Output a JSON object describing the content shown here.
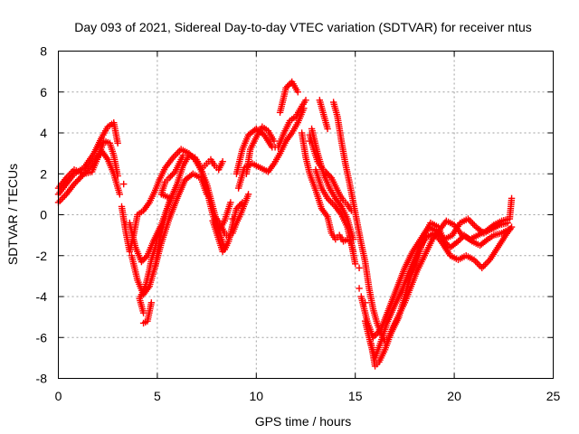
{
  "chart_data": {
    "type": "scatter",
    "title": "Day 093 of 2021, Sidereal Day-to-day VTEC variation (SDTVAR) for receiver ntus",
    "xlabel": "GPS time / hours",
    "ylabel": "SDTVAR / TECUs",
    "xlim": [
      0,
      25
    ],
    "ylim": [
      -8,
      8
    ],
    "x_ticks": [
      0,
      5,
      10,
      15,
      20,
      25
    ],
    "y_ticks": [
      -8,
      -6,
      -4,
      -2,
      0,
      2,
      4,
      6,
      8
    ],
    "x_tick_labels": [
      "0",
      "5",
      "10",
      "15",
      "20",
      "25"
    ],
    "y_tick_labels": [
      "-8",
      "-6",
      "-4",
      "-2",
      "0",
      "2",
      "4",
      "6",
      "8"
    ],
    "grid": true,
    "marker": "plus",
    "marker_color": "#ff0000",
    "series": [
      {
        "points": [
          [
            0.0,
            1.0
          ],
          [
            0.4,
            1.5
          ],
          [
            0.8,
            2.0
          ],
          [
            1.3,
            2.3
          ],
          [
            1.8,
            3.0
          ],
          [
            2.2,
            3.8
          ],
          [
            2.5,
            4.3
          ],
          [
            2.8,
            4.5
          ],
          [
            3.0,
            3.5
          ],
          [
            3.3,
            1.5
          ],
          [
            3.6,
            -0.4
          ],
          [
            3.9,
            -1.6
          ],
          [
            4.2,
            -2.3
          ],
          [
            4.5,
            -2.0
          ],
          [
            4.8,
            -1.3
          ],
          [
            5.2,
            -0.5
          ],
          [
            5.6,
            0.6
          ],
          [
            6.0,
            1.5
          ],
          [
            6.3,
            2.4
          ],
          [
            6.6,
            2.9
          ],
          [
            6.9,
            2.8
          ],
          [
            7.1,
            2.5
          ],
          [
            7.3,
            2.0
          ],
          [
            7.5,
            1.2
          ],
          [
            7.8,
            0.0
          ],
          [
            8.1,
            -0.8
          ],
          [
            8.4,
            -0.3
          ],
          [
            8.7,
            0.6
          ],
          [
            9.0,
            2.0
          ],
          [
            9.3,
            3.2
          ],
          [
            9.6,
            3.9
          ],
          [
            10.0,
            4.2
          ],
          [
            10.4,
            3.9
          ],
          [
            10.8,
            3.3
          ],
          [
            11.1,
            3.3
          ],
          [
            11.4,
            4.0
          ],
          [
            11.7,
            4.6
          ],
          [
            12.0,
            4.8
          ],
          [
            12.3,
            5.3
          ],
          [
            12.5,
            5.6
          ],
          [
            12.8,
            4.2
          ],
          [
            13.1,
            3.0
          ],
          [
            13.4,
            2.0
          ],
          [
            13.7,
            1.3
          ],
          [
            14.0,
            0.8
          ],
          [
            14.3,
            0.4
          ],
          [
            14.6,
            -0.2
          ],
          [
            14.9,
            -1.2
          ],
          [
            15.2,
            -2.6
          ],
          [
            15.5,
            -4.3
          ],
          [
            15.8,
            -6.3
          ],
          [
            16.0,
            -7.4
          ],
          [
            16.2,
            -7.2
          ],
          [
            16.5,
            -6.6
          ],
          [
            16.8,
            -5.8
          ],
          [
            17.2,
            -5.0
          ],
          [
            17.5,
            -4.0
          ],
          [
            17.8,
            -3.0
          ],
          [
            18.2,
            -2.0
          ],
          [
            18.5,
            -1.0
          ],
          [
            18.8,
            -0.4
          ],
          [
            19.2,
            -0.6
          ],
          [
            19.5,
            -1.3
          ],
          [
            19.8,
            -1.6
          ],
          [
            20.2,
            -1.3
          ],
          [
            20.5,
            -1.0
          ],
          [
            20.9,
            -1.3
          ],
          [
            21.3,
            -1.5
          ],
          [
            21.7,
            -1.2
          ],
          [
            22.0,
            -1.0
          ],
          [
            22.4,
            -0.9
          ],
          [
            22.8,
            -0.7
          ]
        ]
      },
      {
        "points": [
          [
            0.0,
            0.6
          ],
          [
            0.4,
            1.0
          ],
          [
            0.8,
            1.5
          ],
          [
            1.3,
            2.0
          ],
          [
            1.8,
            2.6
          ],
          [
            2.2,
            3.1
          ],
          [
            2.5,
            2.7
          ],
          [
            2.8,
            2.0
          ],
          [
            3.1,
            1.0
          ],
          [
            3.4,
            -0.5
          ],
          [
            3.7,
            -2.0
          ],
          [
            4.0,
            -3.2
          ],
          [
            4.3,
            -3.9
          ],
          [
            4.6,
            -3.5
          ],
          [
            4.9,
            -2.5
          ],
          [
            5.2,
            -1.4
          ],
          [
            5.6,
            -0.2
          ],
          [
            6.0,
            0.8
          ],
          [
            6.4,
            1.7
          ],
          [
            6.8,
            2.0
          ],
          [
            7.2,
            1.8
          ],
          [
            7.5,
            1.0
          ],
          [
            7.8,
            -0.3
          ],
          [
            8.1,
            -1.2
          ],
          [
            8.3,
            -1.8
          ],
          [
            8.5,
            -1.5
          ],
          [
            8.8,
            -0.2
          ],
          [
            9.1,
            1.3
          ],
          [
            9.4,
            2.3
          ],
          [
            9.8,
            2.5
          ],
          [
            10.2,
            2.3
          ],
          [
            10.6,
            2.1
          ],
          [
            10.9,
            2.5
          ],
          [
            11.2,
            3.0
          ],
          [
            11.5,
            3.6
          ],
          [
            11.8,
            4.0
          ],
          [
            12.1,
            4.5
          ],
          [
            12.4,
            5.2
          ],
          [
            12.7,
            3.6
          ],
          [
            13.0,
            2.2
          ],
          [
            13.3,
            1.3
          ],
          [
            13.6,
            0.8
          ],
          [
            14.0,
            0.4
          ],
          [
            14.3,
            0.0
          ],
          [
            14.6,
            -0.6
          ],
          [
            14.9,
            -1.8
          ],
          [
            15.2,
            -3.6
          ],
          [
            15.5,
            -5.2
          ],
          [
            15.8,
            -6.4
          ],
          [
            16.0,
            -7.0
          ],
          [
            16.3,
            -6.2
          ],
          [
            16.6,
            -5.3
          ],
          [
            17.0,
            -4.4
          ],
          [
            17.4,
            -3.6
          ],
          [
            17.8,
            -2.6
          ],
          [
            18.2,
            -1.7
          ],
          [
            18.6,
            -1.1
          ],
          [
            19.0,
            -0.9
          ],
          [
            19.4,
            -1.4
          ],
          [
            19.8,
            -2.0
          ],
          [
            20.2,
            -2.2
          ],
          [
            20.6,
            -2.0
          ],
          [
            21.0,
            -2.2
          ],
          [
            21.4,
            -2.6
          ],
          [
            21.8,
            -2.2
          ],
          [
            22.2,
            -1.6
          ],
          [
            22.6,
            -1.0
          ],
          [
            22.9,
            -0.6
          ]
        ]
      },
      {
        "points": [
          [
            0.0,
            1.3
          ],
          [
            0.4,
            1.8
          ],
          [
            0.8,
            2.2
          ],
          [
            1.3,
            2.0
          ],
          [
            1.7,
            2.1
          ],
          [
            2.0,
            2.8
          ],
          [
            2.3,
            3.6
          ],
          [
            2.6,
            3.5
          ],
          [
            2.8,
            2.9
          ],
          [
            3.0,
            1.9
          ],
          [
            3.2,
            0.4
          ],
          [
            3.4,
            -0.8
          ],
          [
            3.6,
            -1.8
          ],
          [
            3.8,
            -1.0
          ],
          [
            4.0,
            0.0
          ],
          [
            4.3,
            0.2
          ],
          [
            4.6,
            0.6
          ],
          [
            4.9,
            1.2
          ],
          [
            5.1,
            1.7
          ],
          [
            5.4,
            2.3
          ],
          [
            5.8,
            2.8
          ],
          [
            6.2,
            3.2
          ],
          [
            6.6,
            3.0
          ],
          [
            6.9,
            2.7
          ],
          [
            7.2,
            2.2
          ],
          [
            7.5,
            1.5
          ],
          [
            7.8,
            0.4
          ],
          [
            8.1,
            -0.7
          ],
          [
            8.4,
            -1.7
          ],
          [
            8.6,
            -1.3
          ],
          [
            8.8,
            -0.5
          ],
          [
            9.0,
            0.3
          ],
          [
            9.3,
            0.6
          ],
          [
            9.5,
            2.0
          ],
          [
            9.7,
            3.2
          ],
          [
            10.0,
            3.8
          ],
          [
            10.3,
            4.3
          ],
          [
            10.6,
            4.1
          ],
          [
            10.9,
            3.6
          ],
          [
            11.2,
            5.0
          ],
          [
            11.5,
            6.2
          ],
          [
            11.8,
            6.5
          ],
          [
            12.1,
            6.0
          ],
          [
            12.3,
            4.0
          ],
          [
            12.5,
            2.8
          ],
          [
            12.7,
            2.0
          ],
          [
            13.0,
            1.2
          ],
          [
            13.3,
            0.3
          ],
          [
            13.6,
            -0.1
          ],
          [
            13.8,
            -0.9
          ],
          [
            14.0,
            -1.2
          ],
          [
            14.2,
            -1.0
          ],
          [
            14.4,
            -1.3
          ],
          [
            14.6,
            -1.2
          ],
          [
            14.8,
            -1.4
          ],
          [
            15.0,
            -2.4
          ],
          [
            15.3,
            -4.0
          ],
          [
            15.6,
            -5.2
          ],
          [
            15.9,
            -6.0
          ],
          [
            16.3,
            -5.6
          ],
          [
            16.7,
            -4.6
          ],
          [
            17.1,
            -3.6
          ],
          [
            17.5,
            -2.6
          ],
          [
            17.9,
            -1.8
          ],
          [
            18.3,
            -1.2
          ],
          [
            18.7,
            -0.6
          ],
          [
            19.1,
            -0.8
          ],
          [
            19.5,
            -1.2
          ],
          [
            19.9,
            -1.0
          ],
          [
            20.3,
            -0.4
          ],
          [
            20.7,
            -0.2
          ],
          [
            21.1,
            -0.6
          ],
          [
            21.5,
            -0.9
          ],
          [
            21.9,
            -0.7
          ],
          [
            22.3,
            -0.5
          ],
          [
            22.7,
            -0.4
          ]
        ]
      },
      {
        "points": [
          [
            4.3,
            -5.3
          ],
          [
            4.5,
            -5.2
          ],
          [
            4.7,
            -4.3
          ],
          [
            4.9,
            -2.5
          ],
          [
            5.1,
            -1.3
          ],
          [
            5.3,
            -0.5
          ],
          [
            5.5,
            0.3
          ],
          [
            5.7,
            0.8
          ],
          [
            5.2,
            1.0
          ],
          [
            5.4,
            1.6
          ],
          [
            5.6,
            1.8
          ],
          [
            5.9,
            2.1
          ],
          [
            6.1,
            2.5
          ],
          [
            6.3,
            2.9
          ],
          [
            5.2,
            -0.6
          ],
          [
            5.0,
            -1.1
          ],
          [
            4.9,
            -1.6
          ],
          [
            4.7,
            -2.2
          ],
          [
            4.6,
            -2.7
          ],
          [
            4.5,
            -3.1
          ],
          [
            4.4,
            -3.5
          ],
          [
            4.2,
            -3.9
          ],
          [
            4.1,
            -4.1
          ],
          [
            4.3,
            -4.8
          ],
          [
            12.7,
            3.9
          ],
          [
            12.9,
            3.2
          ],
          [
            13.1,
            2.6
          ],
          [
            13.3,
            2.3
          ],
          [
            13.5,
            2.1
          ],
          [
            13.8,
            1.8
          ],
          [
            13.9,
            1.6
          ],
          [
            14.2,
            1.0
          ],
          [
            14.4,
            0.7
          ],
          [
            14.6,
            0.5
          ],
          [
            14.8,
            0.2
          ],
          [
            13.2,
            5.6
          ],
          [
            13.4,
            4.9
          ],
          [
            13.6,
            4.2
          ],
          [
            13.9,
            5.5
          ],
          [
            14.1,
            4.8
          ],
          [
            14.3,
            3.6
          ],
          [
            14.5,
            2.5
          ],
          [
            14.7,
            1.6
          ],
          [
            14.9,
            0.6
          ],
          [
            15.1,
            -0.4
          ],
          [
            15.3,
            -1.4
          ],
          [
            15.5,
            -2.3
          ],
          [
            15.7,
            -3.6
          ],
          [
            15.9,
            -4.6
          ],
          [
            16.1,
            -5.3
          ],
          [
            16.3,
            -5.8
          ],
          [
            16.5,
            -6.2
          ],
          [
            16.7,
            -6.0
          ],
          [
            16.9,
            -5.5
          ],
          [
            17.1,
            -5.1
          ],
          [
            17.3,
            -4.7
          ],
          [
            17.5,
            -4.3
          ],
          [
            17.7,
            -3.8
          ],
          [
            17.9,
            -3.3
          ],
          [
            18.1,
            -2.8
          ],
          [
            18.3,
            -2.4
          ],
          [
            18.5,
            -2.0
          ],
          [
            18.7,
            -1.6
          ],
          [
            18.9,
            -1.2
          ],
          [
            19.6,
            -0.3
          ],
          [
            20.0,
            -0.5
          ],
          [
            20.4,
            -1.0
          ],
          [
            20.8,
            -1.2
          ],
          [
            21.2,
            -1.0
          ],
          [
            21.6,
            -0.8
          ],
          [
            22.0,
            -0.5
          ],
          [
            22.4,
            -0.3
          ],
          [
            22.8,
            -0.2
          ],
          [
            22.9,
            0.8
          ],
          [
            7.3,
            2.3
          ],
          [
            7.5,
            2.5
          ],
          [
            7.7,
            2.7
          ],
          [
            7.9,
            2.4
          ],
          [
            8.1,
            2.2
          ],
          [
            8.3,
            2.6
          ],
          [
            8.0,
            -0.2
          ],
          [
            8.2,
            -0.5
          ],
          [
            8.4,
            -0.9
          ],
          [
            8.6,
            -1.1
          ],
          [
            8.8,
            -0.9
          ],
          [
            9.0,
            -0.4
          ],
          [
            9.2,
            0.0
          ],
          [
            9.4,
            0.5
          ],
          [
            9.6,
            1.0
          ]
        ]
      }
    ]
  }
}
